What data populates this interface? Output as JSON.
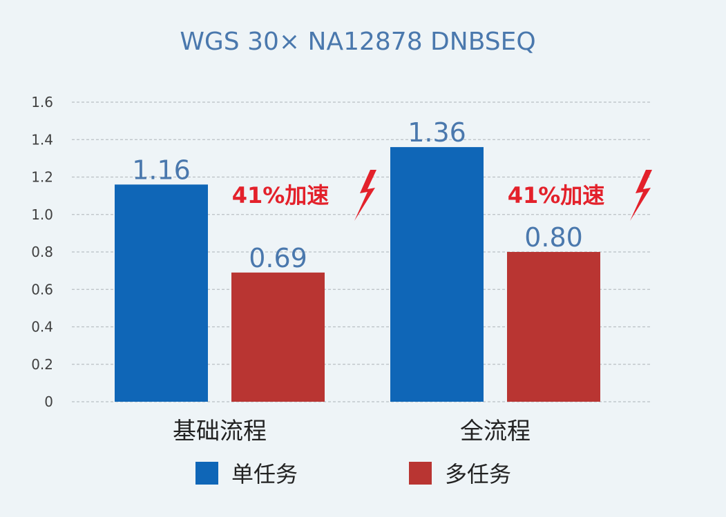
{
  "chart_data": {
    "type": "bar",
    "title": "WGS 30× NA12878 DNBSEQ",
    "categories": [
      "基础流程",
      "全流程"
    ],
    "series": [
      {
        "name": "单任务",
        "values": [
          1.16,
          1.36
        ],
        "color": "#0f66b7"
      },
      {
        "name": "多任务",
        "values": [
          0.69,
          0.8
        ],
        "color": "#b93532"
      }
    ],
    "data_labels": [
      [
        "1.16",
        "0.69"
      ],
      [
        "1.36",
        "0.80"
      ]
    ],
    "annotations": [
      "41%加速",
      "41%加速"
    ],
    "annotation_icon": "lightning-bolt-icon",
    "annotation_color": "#e3212b",
    "ylim": [
      0,
      1.6
    ],
    "yticks": [
      "0",
      "0.2",
      "0.4",
      "0.6",
      "0.8",
      "1.0",
      "1.2",
      "1.4",
      "1.6"
    ],
    "grid": true,
    "legend_position": "bottom",
    "xlabel": "",
    "ylabel": ""
  }
}
